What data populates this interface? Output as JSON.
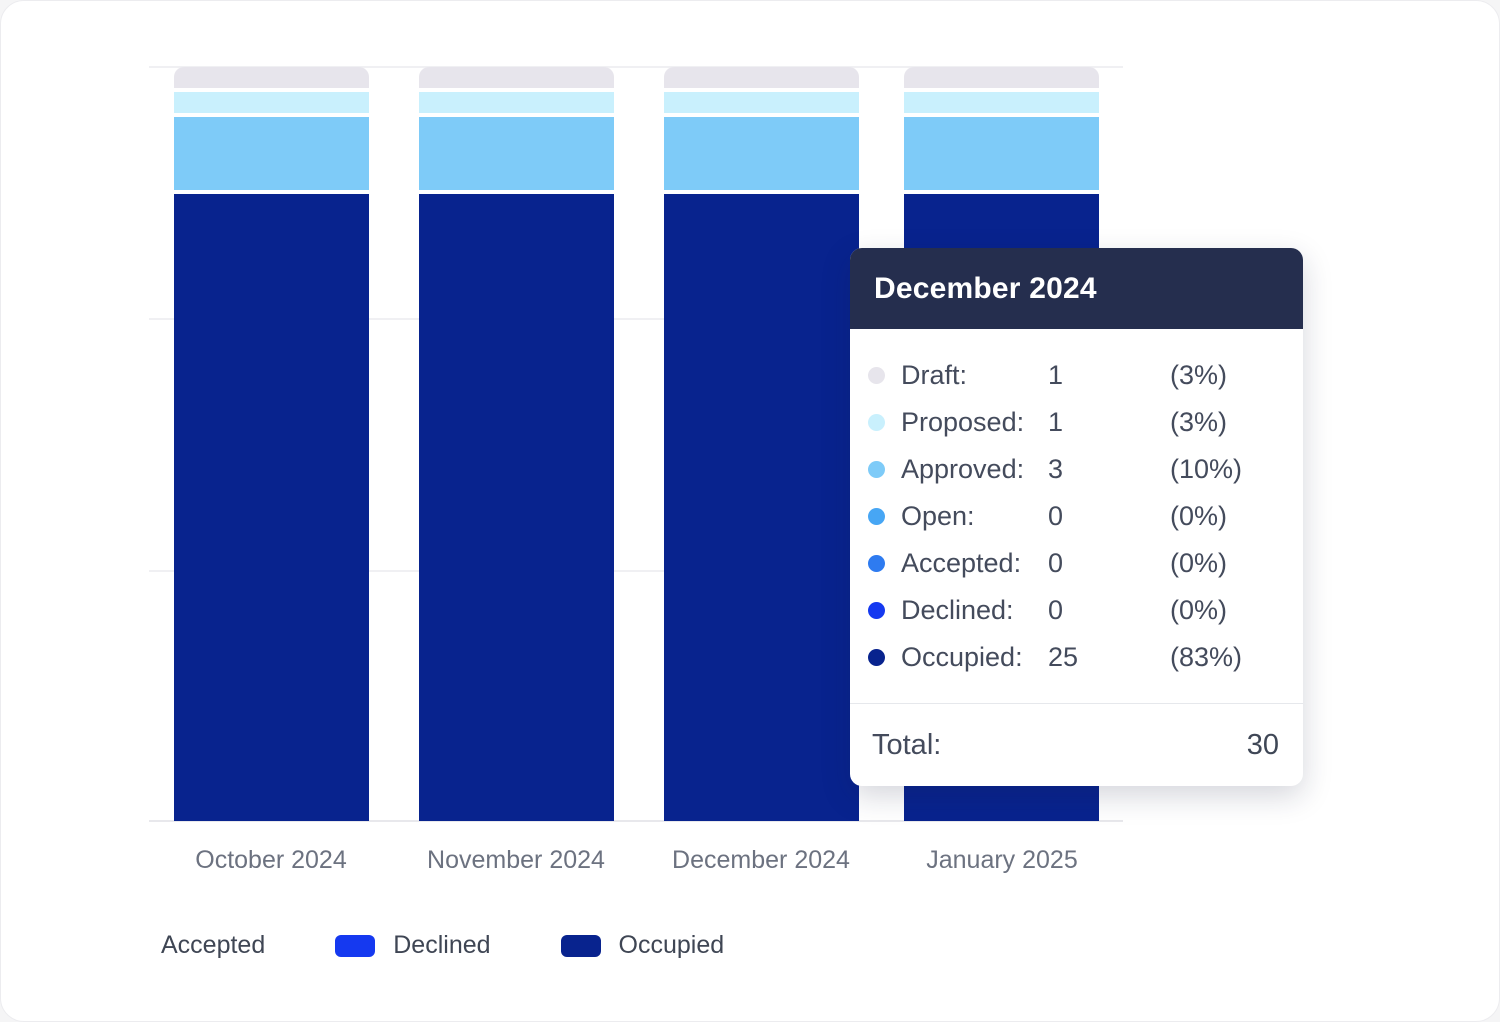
{
  "chart_data": {
    "type": "bar",
    "stacked": true,
    "normalized_percent": true,
    "categories": [
      "October 2024",
      "November 2024",
      "December 2024",
      "January 2025"
    ],
    "series": [
      {
        "name": "Draft",
        "color": "#e7e5ec",
        "percent_values": [
          3,
          3,
          3,
          3
        ]
      },
      {
        "name": "Proposed",
        "color": "#c9f0fd",
        "percent_values": [
          3,
          3,
          3,
          3
        ]
      },
      {
        "name": "Approved",
        "color": "#7ecbf8",
        "percent_values": [
          10,
          10,
          10,
          10
        ]
      },
      {
        "name": "Open",
        "color": "#47a6f4",
        "percent_values": [
          0,
          0,
          0,
          0
        ]
      },
      {
        "name": "Accepted",
        "color": "#2e7bf0",
        "percent_values": [
          0,
          0,
          0,
          0
        ]
      },
      {
        "name": "Declined",
        "color": "#1539f0",
        "percent_values": [
          0,
          0,
          0,
          0
        ]
      },
      {
        "name": "Occupied",
        "color": "#08238e",
        "percent_values": [
          83,
          83,
          83,
          83
        ]
      }
    ],
    "december_2024_values": {
      "Draft": 1,
      "Proposed": 1,
      "Approved": 3,
      "Open": 0,
      "Accepted": 0,
      "Declined": 0,
      "Occupied": 25,
      "Total": 30
    },
    "grid": true,
    "legend_position": "bottom"
  },
  "tooltip": {
    "title": "December 2024",
    "header_bg": "#252e4e",
    "rows": [
      {
        "label": "Draft:",
        "value": "1",
        "percent": "(3%)",
        "color": "#e7e5ec"
      },
      {
        "label": "Proposed:",
        "value": "1",
        "percent": "(3%)",
        "color": "#c9f0fd"
      },
      {
        "label": "Approved:",
        "value": "3",
        "percent": "(10%)",
        "color": "#7ecbf8"
      },
      {
        "label": "Open:",
        "value": "0",
        "percent": "(0%)",
        "color": "#47a6f4"
      },
      {
        "label": "Accepted:",
        "value": "0",
        "percent": "(0%)",
        "color": "#2e7bf0"
      },
      {
        "label": "Declined:",
        "value": "0",
        "percent": "(0%)",
        "color": "#1539f0"
      },
      {
        "label": "Occupied:",
        "value": "25",
        "percent": "(83%)",
        "color": "#08238e"
      }
    ],
    "total_label": "Total:",
    "total_value": "30"
  },
  "x_axis": {
    "labels": [
      "October 2024",
      "November 2024",
      "December 2024",
      "January 2025"
    ]
  },
  "legend": {
    "items": [
      {
        "label": "Accepted",
        "swatch_color": null
      },
      {
        "label": "Declined",
        "swatch_color": "#1539f0"
      },
      {
        "label": "Occupied",
        "swatch_color": "#08238e"
      }
    ]
  }
}
